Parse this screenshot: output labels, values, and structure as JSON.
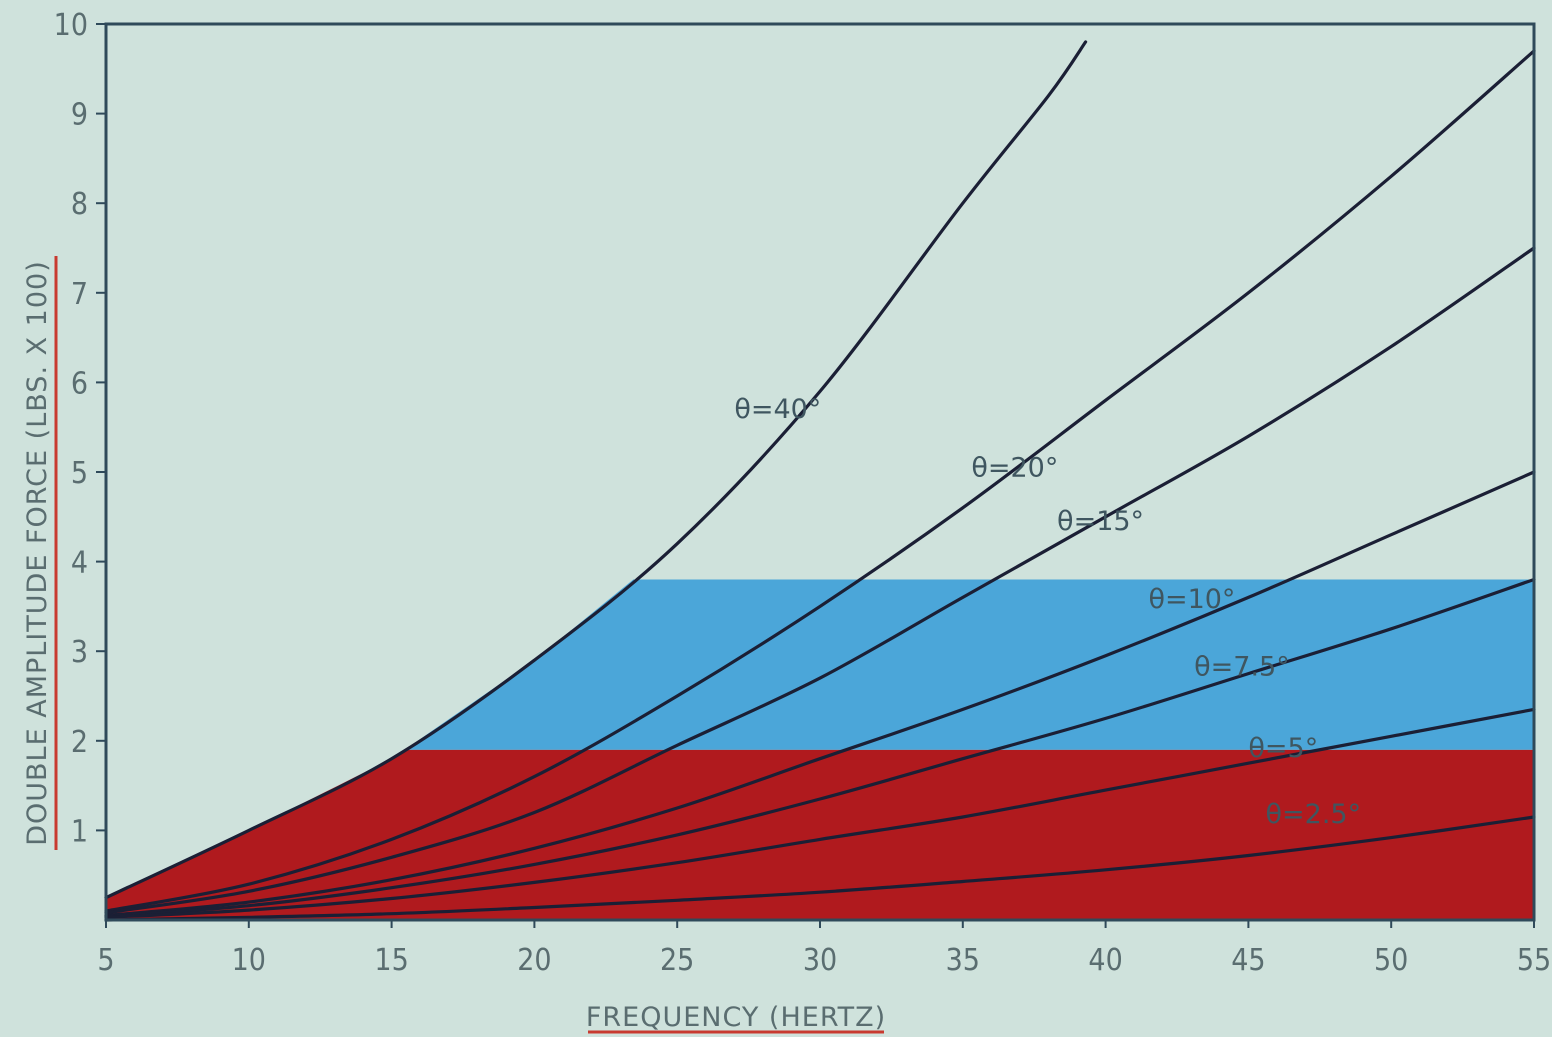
{
  "chart_data": {
    "type": "line",
    "xlabel": "FREQUENCY (HERTZ)",
    "ylabel": "DOUBLE AMPLITUDE FORCE (LBS. X 100)",
    "xlim": [
      5,
      55
    ],
    "ylim": [
      0,
      10
    ],
    "x_ticks": [
      "5",
      "10",
      "15",
      "20",
      "25",
      "30",
      "35",
      "40",
      "45",
      "50",
      "55"
    ],
    "y_ticks": [
      "1",
      "2",
      "3",
      "4",
      "5",
      "6",
      "7",
      "8",
      "9",
      "10"
    ],
    "grid": false,
    "bands": [
      {
        "y_range": [
          0,
          1.9
        ],
        "color": "#b01a1e",
        "bounded_by": "θ=40°"
      },
      {
        "y_range": [
          1.9,
          3.8
        ],
        "color": "#4ba6d9",
        "bounded_by": "θ=40°"
      }
    ],
    "series": [
      {
        "name": "θ=40°",
        "x": [
          5,
          10,
          15,
          20,
          25,
          30,
          35,
          38,
          39.3
        ],
        "y": [
          0.25,
          1.0,
          1.8,
          2.9,
          4.2,
          5.9,
          8.0,
          9.2,
          9.8
        ]
      },
      {
        "name": "θ=20°",
        "x": [
          5,
          10,
          15,
          20,
          25,
          30,
          35,
          40,
          45,
          50,
          55
        ],
        "y": [
          0.1,
          0.4,
          0.9,
          1.6,
          2.5,
          3.5,
          4.6,
          5.8,
          7.0,
          8.3,
          9.7
        ]
      },
      {
        "name": "θ=15°",
        "x": [
          5,
          10,
          15,
          20,
          25,
          30,
          35,
          40,
          45,
          50,
          55
        ],
        "y": [
          0.08,
          0.32,
          0.7,
          1.2,
          1.95,
          2.7,
          3.6,
          4.5,
          5.4,
          6.4,
          7.5
        ]
      },
      {
        "name": "θ=10°",
        "x": [
          5,
          10,
          15,
          20,
          25,
          30,
          35,
          40,
          45,
          50,
          55
        ],
        "y": [
          0.05,
          0.2,
          0.45,
          0.8,
          1.25,
          1.8,
          2.35,
          2.95,
          3.6,
          4.3,
          5.0
        ]
      },
      {
        "name": "θ=7.5°",
        "x": [
          5,
          10,
          15,
          20,
          25,
          30,
          35,
          40,
          45,
          50,
          55
        ],
        "y": [
          0.04,
          0.16,
          0.36,
          0.62,
          0.95,
          1.35,
          1.8,
          2.25,
          2.75,
          3.25,
          3.8
        ]
      },
      {
        "name": "θ=5°",
        "x": [
          5,
          10,
          15,
          20,
          25,
          30,
          35,
          40,
          45,
          50,
          55
        ],
        "y": [
          0.03,
          0.11,
          0.24,
          0.42,
          0.64,
          0.9,
          1.15,
          1.45,
          1.75,
          2.05,
          2.35
        ]
      },
      {
        "name": "θ=2.5°",
        "x": [
          5,
          10,
          15,
          20,
          25,
          30,
          35,
          40,
          45,
          50,
          55
        ],
        "y": [
          0.0,
          0.03,
          0.07,
          0.14,
          0.22,
          0.31,
          0.43,
          0.56,
          0.72,
          0.92,
          1.15
        ]
      }
    ],
    "curve_labels": [
      {
        "text": "θ=40°",
        "x": 27.0,
        "y": 5.6
      },
      {
        "text": "θ=20°",
        "x": 35.3,
        "y": 4.95
      },
      {
        "text": "θ=15°",
        "x": 38.3,
        "y": 4.35
      },
      {
        "text": "θ=10°",
        "x": 41.5,
        "y": 3.48
      },
      {
        "text": "θ=7.5°",
        "x": 43.1,
        "y": 2.73
      },
      {
        "text": "θ=5°",
        "x": 45.0,
        "y": 1.82
      },
      {
        "text": "θ=2.5°",
        "x": 45.6,
        "y": 1.08
      }
    ],
    "colors": {
      "background": "#cfe2dc",
      "frame": "#2f4a5a",
      "curve": "#1b1f35",
      "tick_text": "#5a6d70",
      "title_underline": "#c83a30"
    }
  }
}
